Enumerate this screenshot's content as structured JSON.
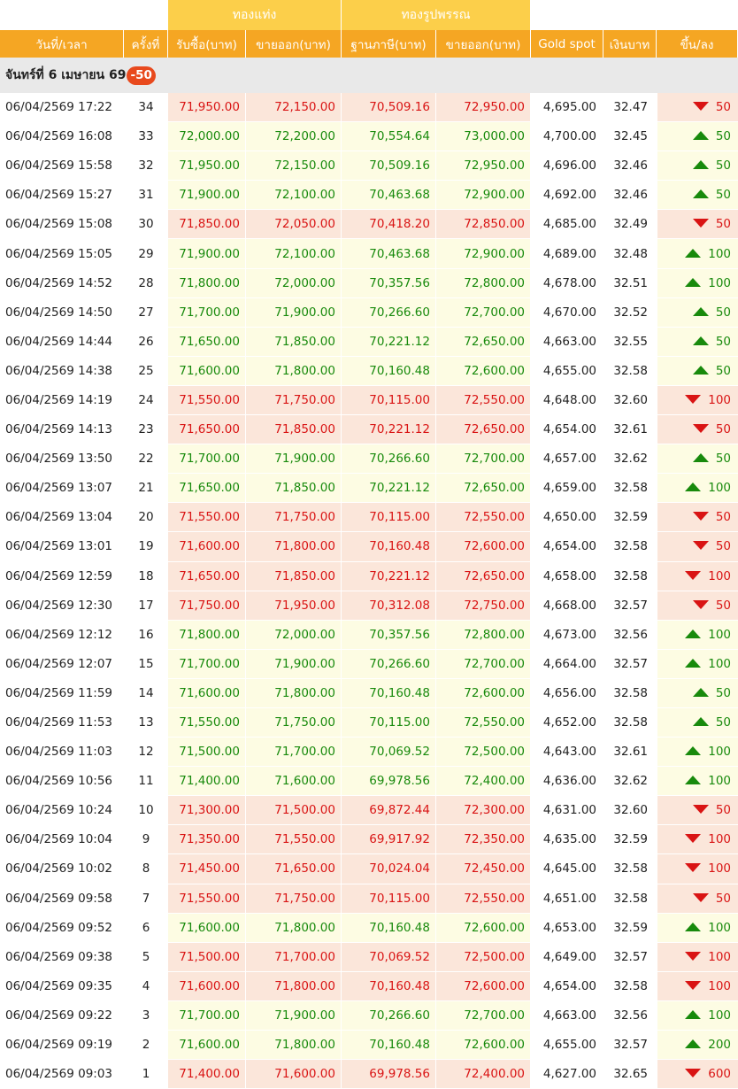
{
  "groups": {
    "bar": "ทองแท่ง",
    "ornament": "ทองรูปพรรณ"
  },
  "headers": {
    "datetime": "วันที่/เวลา",
    "no": "ครั้งที่",
    "bar_buy": "รับซื้อ(บาท)",
    "bar_sell": "ขายออก(บาท)",
    "orn_base": "ฐานภาษี(บาท)",
    "orn_sell": "ขายออก(บาท)",
    "spot": "Gold spot",
    "thb": "เงินบาท",
    "change": "ขึ้น/ลง"
  },
  "day": {
    "label": "จันทร์ที่ 6 เมษายน 69",
    "change": "-50"
  },
  "colors": {
    "up": "#188a0c",
    "down": "#d91414",
    "header": "#f5a623",
    "group_header": "#fccf4a",
    "badge": "#e8491d"
  },
  "rows": [
    {
      "time": "06/04/2569 17:22",
      "no": "34",
      "buy": "71,950.00",
      "sell": "72,150.00",
      "base": "70,509.16",
      "orn": "72,950.00",
      "spot": "4,695.00",
      "thb": "32.47",
      "dir": "down",
      "chg": "50"
    },
    {
      "time": "06/04/2569 16:08",
      "no": "33",
      "buy": "72,000.00",
      "sell": "72,200.00",
      "base": "70,554.64",
      "orn": "73,000.00",
      "spot": "4,700.00",
      "thb": "32.45",
      "dir": "up",
      "chg": "50"
    },
    {
      "time": "06/04/2569 15:58",
      "no": "32",
      "buy": "71,950.00",
      "sell": "72,150.00",
      "base": "70,509.16",
      "orn": "72,950.00",
      "spot": "4,696.00",
      "thb": "32.46",
      "dir": "up",
      "chg": "50"
    },
    {
      "time": "06/04/2569 15:27",
      "no": "31",
      "buy": "71,900.00",
      "sell": "72,100.00",
      "base": "70,463.68",
      "orn": "72,900.00",
      "spot": "4,692.00",
      "thb": "32.46",
      "dir": "up",
      "chg": "50"
    },
    {
      "time": "06/04/2569 15:08",
      "no": "30",
      "buy": "71,850.00",
      "sell": "72,050.00",
      "base": "70,418.20",
      "orn": "72,850.00",
      "spot": "4,685.00",
      "thb": "32.49",
      "dir": "down",
      "chg": "50"
    },
    {
      "time": "06/04/2569 15:05",
      "no": "29",
      "buy": "71,900.00",
      "sell": "72,100.00",
      "base": "70,463.68",
      "orn": "72,900.00",
      "spot": "4,689.00",
      "thb": "32.48",
      "dir": "up",
      "chg": "100"
    },
    {
      "time": "06/04/2569 14:52",
      "no": "28",
      "buy": "71,800.00",
      "sell": "72,000.00",
      "base": "70,357.56",
      "orn": "72,800.00",
      "spot": "4,678.00",
      "thb": "32.51",
      "dir": "up",
      "chg": "100"
    },
    {
      "time": "06/04/2569 14:50",
      "no": "27",
      "buy": "71,700.00",
      "sell": "71,900.00",
      "base": "70,266.60",
      "orn": "72,700.00",
      "spot": "4,670.00",
      "thb": "32.52",
      "dir": "up",
      "chg": "50"
    },
    {
      "time": "06/04/2569 14:44",
      "no": "26",
      "buy": "71,650.00",
      "sell": "71,850.00",
      "base": "70,221.12",
      "orn": "72,650.00",
      "spot": "4,663.00",
      "thb": "32.55",
      "dir": "up",
      "chg": "50"
    },
    {
      "time": "06/04/2569 14:38",
      "no": "25",
      "buy": "71,600.00",
      "sell": "71,800.00",
      "base": "70,160.48",
      "orn": "72,600.00",
      "spot": "4,655.00",
      "thb": "32.58",
      "dir": "up",
      "chg": "50"
    },
    {
      "time": "06/04/2569 14:19",
      "no": "24",
      "buy": "71,550.00",
      "sell": "71,750.00",
      "base": "70,115.00",
      "orn": "72,550.00",
      "spot": "4,648.00",
      "thb": "32.60",
      "dir": "down",
      "chg": "100"
    },
    {
      "time": "06/04/2569 14:13",
      "no": "23",
      "buy": "71,650.00",
      "sell": "71,850.00",
      "base": "70,221.12",
      "orn": "72,650.00",
      "spot": "4,654.00",
      "thb": "32.61",
      "dir": "down",
      "chg": "50"
    },
    {
      "time": "06/04/2569 13:50",
      "no": "22",
      "buy": "71,700.00",
      "sell": "71,900.00",
      "base": "70,266.60",
      "orn": "72,700.00",
      "spot": "4,657.00",
      "thb": "32.62",
      "dir": "up",
      "chg": "50"
    },
    {
      "time": "06/04/2569 13:07",
      "no": "21",
      "buy": "71,650.00",
      "sell": "71,850.00",
      "base": "70,221.12",
      "orn": "72,650.00",
      "spot": "4,659.00",
      "thb": "32.58",
      "dir": "up",
      "chg": "100"
    },
    {
      "time": "06/04/2569 13:04",
      "no": "20",
      "buy": "71,550.00",
      "sell": "71,750.00",
      "base": "70,115.00",
      "orn": "72,550.00",
      "spot": "4,650.00",
      "thb": "32.59",
      "dir": "down",
      "chg": "50"
    },
    {
      "time": "06/04/2569 13:01",
      "no": "19",
      "buy": "71,600.00",
      "sell": "71,800.00",
      "base": "70,160.48",
      "orn": "72,600.00",
      "spot": "4,654.00",
      "thb": "32.58",
      "dir": "down",
      "chg": "50"
    },
    {
      "time": "06/04/2569 12:59",
      "no": "18",
      "buy": "71,650.00",
      "sell": "71,850.00",
      "base": "70,221.12",
      "orn": "72,650.00",
      "spot": "4,658.00",
      "thb": "32.58",
      "dir": "down",
      "chg": "100"
    },
    {
      "time": "06/04/2569 12:30",
      "no": "17",
      "buy": "71,750.00",
      "sell": "71,950.00",
      "base": "70,312.08",
      "orn": "72,750.00",
      "spot": "4,668.00",
      "thb": "32.57",
      "dir": "down",
      "chg": "50"
    },
    {
      "time": "06/04/2569 12:12",
      "no": "16",
      "buy": "71,800.00",
      "sell": "72,000.00",
      "base": "70,357.56",
      "orn": "72,800.00",
      "spot": "4,673.00",
      "thb": "32.56",
      "dir": "up",
      "chg": "100"
    },
    {
      "time": "06/04/2569 12:07",
      "no": "15",
      "buy": "71,700.00",
      "sell": "71,900.00",
      "base": "70,266.60",
      "orn": "72,700.00",
      "spot": "4,664.00",
      "thb": "32.57",
      "dir": "up",
      "chg": "100"
    },
    {
      "time": "06/04/2569 11:59",
      "no": "14",
      "buy": "71,600.00",
      "sell": "71,800.00",
      "base": "70,160.48",
      "orn": "72,600.00",
      "spot": "4,656.00",
      "thb": "32.58",
      "dir": "up",
      "chg": "50"
    },
    {
      "time": "06/04/2569 11:53",
      "no": "13",
      "buy": "71,550.00",
      "sell": "71,750.00",
      "base": "70,115.00",
      "orn": "72,550.00",
      "spot": "4,652.00",
      "thb": "32.58",
      "dir": "up",
      "chg": "50"
    },
    {
      "time": "06/04/2569 11:03",
      "no": "12",
      "buy": "71,500.00",
      "sell": "71,700.00",
      "base": "70,069.52",
      "orn": "72,500.00",
      "spot": "4,643.00",
      "thb": "32.61",
      "dir": "up",
      "chg": "100"
    },
    {
      "time": "06/04/2569 10:56",
      "no": "11",
      "buy": "71,400.00",
      "sell": "71,600.00",
      "base": "69,978.56",
      "orn": "72,400.00",
      "spot": "4,636.00",
      "thb": "32.62",
      "dir": "up",
      "chg": "100"
    },
    {
      "time": "06/04/2569 10:24",
      "no": "10",
      "buy": "71,300.00",
      "sell": "71,500.00",
      "base": "69,872.44",
      "orn": "72,300.00",
      "spot": "4,631.00",
      "thb": "32.60",
      "dir": "down",
      "chg": "50"
    },
    {
      "time": "06/04/2569 10:04",
      "no": "9",
      "buy": "71,350.00",
      "sell": "71,550.00",
      "base": "69,917.92",
      "orn": "72,350.00",
      "spot": "4,635.00",
      "thb": "32.59",
      "dir": "down",
      "chg": "100"
    },
    {
      "time": "06/04/2569 10:02",
      "no": "8",
      "buy": "71,450.00",
      "sell": "71,650.00",
      "base": "70,024.04",
      "orn": "72,450.00",
      "spot": "4,645.00",
      "thb": "32.58",
      "dir": "down",
      "chg": "100"
    },
    {
      "time": "06/04/2569 09:58",
      "no": "7",
      "buy": "71,550.00",
      "sell": "71,750.00",
      "base": "70,115.00",
      "orn": "72,550.00",
      "spot": "4,651.00",
      "thb": "32.58",
      "dir": "down",
      "chg": "50"
    },
    {
      "time": "06/04/2569 09:52",
      "no": "6",
      "buy": "71,600.00",
      "sell": "71,800.00",
      "base": "70,160.48",
      "orn": "72,600.00",
      "spot": "4,653.00",
      "thb": "32.59",
      "dir": "up",
      "chg": "100"
    },
    {
      "time": "06/04/2569 09:38",
      "no": "5",
      "buy": "71,500.00",
      "sell": "71,700.00",
      "base": "70,069.52",
      "orn": "72,500.00",
      "spot": "4,649.00",
      "thb": "32.57",
      "dir": "down",
      "chg": "100"
    },
    {
      "time": "06/04/2569 09:35",
      "no": "4",
      "buy": "71,600.00",
      "sell": "71,800.00",
      "base": "70,160.48",
      "orn": "72,600.00",
      "spot": "4,654.00",
      "thb": "32.58",
      "dir": "down",
      "chg": "100"
    },
    {
      "time": "06/04/2569 09:22",
      "no": "3",
      "buy": "71,700.00",
      "sell": "71,900.00",
      "base": "70,266.60",
      "orn": "72,700.00",
      "spot": "4,663.00",
      "thb": "32.56",
      "dir": "up",
      "chg": "100"
    },
    {
      "time": "06/04/2569 09:19",
      "no": "2",
      "buy": "71,600.00",
      "sell": "71,800.00",
      "base": "70,160.48",
      "orn": "72,600.00",
      "spot": "4,655.00",
      "thb": "32.57",
      "dir": "up",
      "chg": "200"
    },
    {
      "time": "06/04/2569 09:03",
      "no": "1",
      "buy": "71,400.00",
      "sell": "71,600.00",
      "base": "69,978.56",
      "orn": "72,400.00",
      "spot": "4,627.00",
      "thb": "32.65",
      "dir": "down",
      "chg": "600"
    }
  ]
}
